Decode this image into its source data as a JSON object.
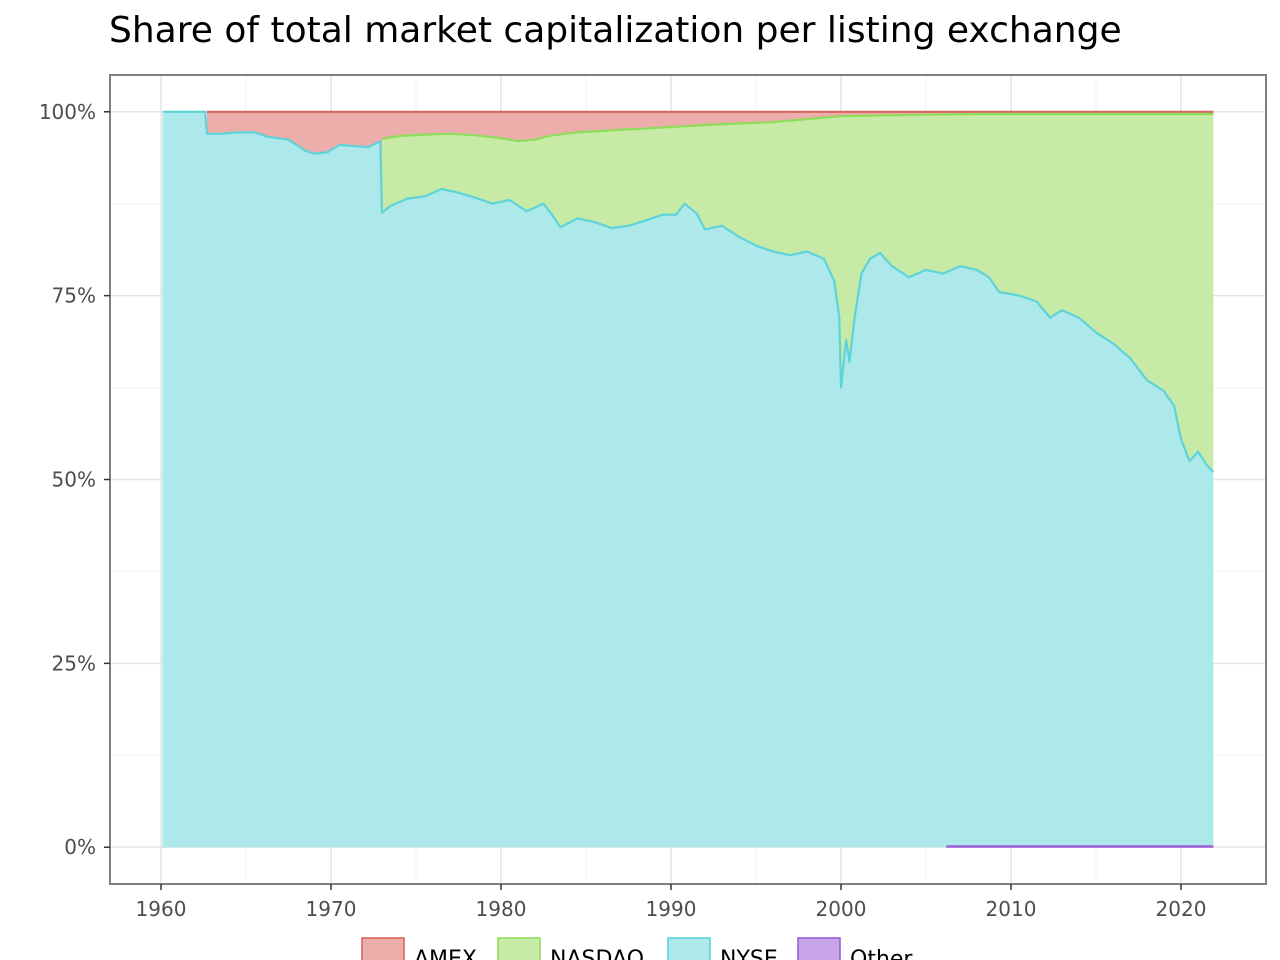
{
  "chart_data": {
    "type": "area",
    "title": "Share of total market capitalization per listing exchange",
    "xlabel": "",
    "ylabel": "",
    "xlim": [
      1957,
      2025
    ],
    "ylim": [
      -0.05,
      1.05
    ],
    "x_ticks": [
      1960,
      1970,
      1980,
      1990,
      2000,
      2010,
      2020
    ],
    "x_tick_labels": [
      "1960",
      "1970",
      "1980",
      "1990",
      "2000",
      "2010",
      "2020"
    ],
    "y_ticks": [
      0,
      0.25,
      0.5,
      0.75,
      1.0
    ],
    "y_tick_labels": [
      "0%",
      "25%",
      "50%",
      "75%",
      "100%"
    ],
    "grid": true,
    "legend_position": "bottom",
    "stacking": "cumulative share, series stacked bottom-to-top: Other, NYSE, NASDAQ, AMEX",
    "series": [
      {
        "name": "NYSE",
        "fill": "#ade8ea",
        "line": "#5ed3da",
        "cumulative_top": [
          [
            1960.1,
            1.0
          ],
          [
            1962.6,
            1.0
          ],
          [
            1962.7,
            0.97
          ],
          [
            1963.5,
            0.97
          ],
          [
            1964.5,
            0.972
          ],
          [
            1965.5,
            0.972
          ],
          [
            1966.3,
            0.966
          ],
          [
            1967.5,
            0.962
          ],
          [
            1968.5,
            0.947
          ],
          [
            1969.0,
            0.943
          ],
          [
            1969.8,
            0.945
          ],
          [
            1970.5,
            0.955
          ],
          [
            1971.5,
            0.953
          ],
          [
            1972.2,
            0.952
          ],
          [
            1972.9,
            0.96
          ],
          [
            1973.0,
            0.863
          ],
          [
            1973.5,
            0.872
          ],
          [
            1974.5,
            0.882
          ],
          [
            1975.5,
            0.885
          ],
          [
            1976.5,
            0.895
          ],
          [
            1977.5,
            0.89
          ],
          [
            1978.5,
            0.883
          ],
          [
            1979.5,
            0.875
          ],
          [
            1980.5,
            0.88
          ],
          [
            1981.5,
            0.865
          ],
          [
            1982.5,
            0.875
          ],
          [
            1983.0,
            0.86
          ],
          [
            1983.5,
            0.843
          ],
          [
            1984.5,
            0.855
          ],
          [
            1985.5,
            0.85
          ],
          [
            1986.5,
            0.842
          ],
          [
            1987.5,
            0.845
          ],
          [
            1988.5,
            0.852
          ],
          [
            1989.5,
            0.86
          ],
          [
            1990.3,
            0.86
          ],
          [
            1990.8,
            0.875
          ],
          [
            1991.5,
            0.862
          ],
          [
            1992.0,
            0.84
          ],
          [
            1993.0,
            0.845
          ],
          [
            1994.0,
            0.83
          ],
          [
            1995.0,
            0.818
          ],
          [
            1996.0,
            0.81
          ],
          [
            1997.0,
            0.805
          ],
          [
            1998.0,
            0.81
          ],
          [
            1999.0,
            0.8
          ],
          [
            1999.6,
            0.77
          ],
          [
            1999.9,
            0.72
          ],
          [
            2000.0,
            0.625
          ],
          [
            2000.3,
            0.69
          ],
          [
            2000.5,
            0.66
          ],
          [
            2000.8,
            0.72
          ],
          [
            2001.2,
            0.78
          ],
          [
            2001.7,
            0.8
          ],
          [
            2002.3,
            0.808
          ],
          [
            2003.0,
            0.79
          ],
          [
            2004.0,
            0.775
          ],
          [
            2005.0,
            0.785
          ],
          [
            2006.0,
            0.78
          ],
          [
            2007.0,
            0.79
          ],
          [
            2008.0,
            0.785
          ],
          [
            2008.7,
            0.775
          ],
          [
            2009.3,
            0.755
          ],
          [
            2010.5,
            0.75
          ],
          [
            2011.5,
            0.742
          ],
          [
            2012.3,
            0.72
          ],
          [
            2013.0,
            0.73
          ],
          [
            2014.0,
            0.72
          ],
          [
            2015.0,
            0.7
          ],
          [
            2016.0,
            0.685
          ],
          [
            2017.0,
            0.665
          ],
          [
            2018.0,
            0.635
          ],
          [
            2019.0,
            0.62
          ],
          [
            2019.6,
            0.6
          ],
          [
            2020.0,
            0.555
          ],
          [
            2020.5,
            0.525
          ],
          [
            2021.0,
            0.538
          ],
          [
            2021.5,
            0.52
          ],
          [
            2021.9,
            0.51
          ]
        ]
      },
      {
        "name": "NASDAQ",
        "fill": "#c7eba6",
        "line": "#8ede5a",
        "cumulative_top": [
          [
            1973.0,
            0.963
          ],
          [
            1974.0,
            0.967
          ],
          [
            1975.5,
            0.969
          ],
          [
            1977.0,
            0.97
          ],
          [
            1978.5,
            0.968
          ],
          [
            1980.0,
            0.964
          ],
          [
            1981.0,
            0.96
          ],
          [
            1982.0,
            0.962
          ],
          [
            1983.0,
            0.968
          ],
          [
            1984.5,
            0.972
          ],
          [
            1986.0,
            0.974
          ],
          [
            1987.5,
            0.976
          ],
          [
            1989.0,
            0.978
          ],
          [
            1990.5,
            0.98
          ],
          [
            1992.0,
            0.982
          ],
          [
            1994.0,
            0.984
          ],
          [
            1996.0,
            0.986
          ],
          [
            1998.0,
            0.99
          ],
          [
            2000.0,
            0.994
          ],
          [
            2002.0,
            0.995
          ],
          [
            2005.0,
            0.996
          ],
          [
            2008.0,
            0.997
          ],
          [
            2012.0,
            0.997
          ],
          [
            2016.0,
            0.997
          ],
          [
            2020.0,
            0.997
          ],
          [
            2021.9,
            0.997
          ]
        ]
      },
      {
        "name": "AMEX",
        "fill": "#ebaeab",
        "line": "#d8665f",
        "cumulative_top": [
          [
            1962.7,
            1.0
          ],
          [
            2021.9,
            1.0
          ]
        ]
      },
      {
        "name": "Other",
        "fill": "#c8a5e8",
        "line": "#9a5fd9",
        "cumulative_top": [
          [
            2006.2,
            0.001
          ],
          [
            2021.9,
            0.001
          ]
        ]
      }
    ]
  }
}
